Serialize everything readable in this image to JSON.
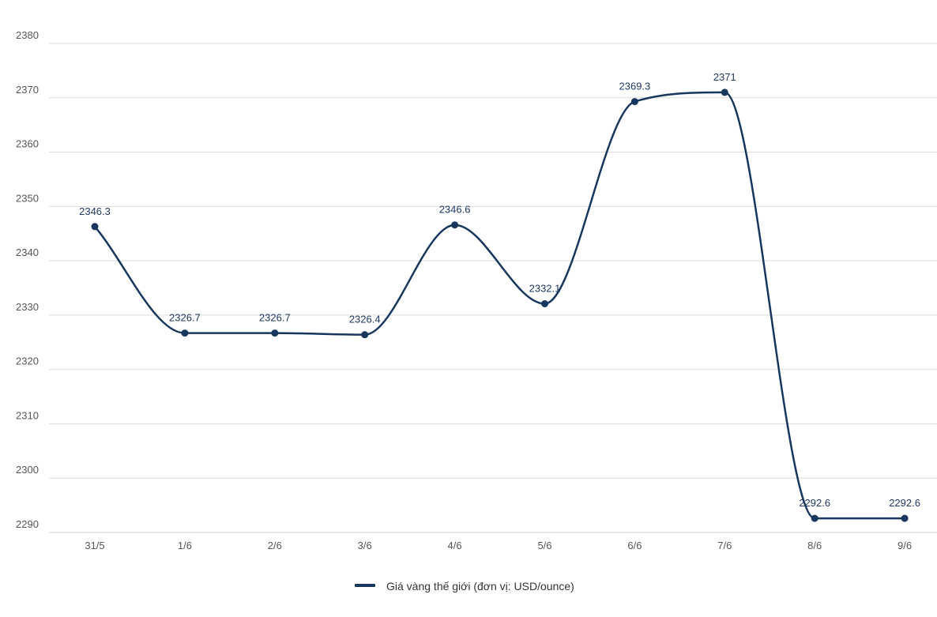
{
  "chart_data": {
    "type": "line",
    "x": [
      "31/5",
      "1/6",
      "2/6",
      "3/6",
      "4/6",
      "5/6",
      "6/6",
      "7/6",
      "8/6",
      "9/6"
    ],
    "series": [
      {
        "name": "Giá vàng thế giới (đơn vị: USD/ounce)",
        "values": [
          2346.3,
          2326.7,
          2326.7,
          2326.4,
          2346.6,
          2332.1,
          2369.3,
          2371,
          2292.6,
          2292.6
        ],
        "data_labels": [
          "2346.3",
          "2326.7",
          "2326.7",
          "2326.4",
          "2346.6",
          "2332.1",
          "2369.3",
          "2371",
          "2292.6",
          "2292.6"
        ],
        "color": "#17375e"
      }
    ],
    "y_ticks": [
      "2380",
      "2370",
      "2360",
      "2350",
      "2340",
      "2330",
      "2320",
      "2310",
      "2300",
      "2290"
    ],
    "ylim": [
      2290,
      2380
    ],
    "grid": true,
    "smooth": true,
    "legend": "bottom-center",
    "xlabel": "",
    "ylabel": "",
    "title": ""
  }
}
